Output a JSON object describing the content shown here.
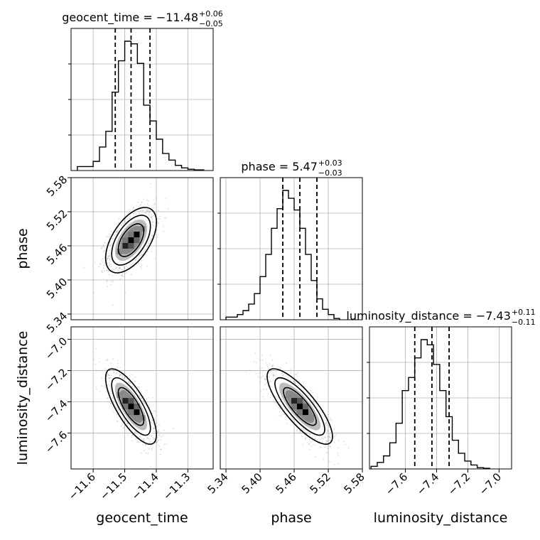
{
  "chart_data": {
    "type": "corner",
    "parameters": [
      {
        "name": "geocent_time",
        "axis_label": "geocent_time",
        "title": {
          "prefix": "geocent_time = ",
          "median": "−11.48",
          "plus": "+0.06",
          "minus": "−0.05"
        },
        "quantiles": [
          -11.53,
          -11.48,
          -11.42
        ],
        "range": [
          -11.67,
          -11.22
        ],
        "ticks": [
          -11.6,
          -11.5,
          -11.4,
          -11.3
        ],
        "tick_labels": [
          "−11.6",
          "−11.5",
          "−11.4",
          "−11.3"
        ],
        "hist_edges": [
          -11.65,
          -11.6,
          -11.58,
          -11.56,
          -11.54,
          -11.52,
          -11.5,
          -11.48,
          -11.46,
          -11.44,
          -11.42,
          -11.4,
          -11.38,
          -11.36,
          -11.34,
          -11.32,
          -11.3,
          -11.28,
          -11.25
        ],
        "hist_counts": [
          0.03,
          0.07,
          0.18,
          0.3,
          0.6,
          0.84,
          0.99,
          0.97,
          0.82,
          0.5,
          0.38,
          0.24,
          0.13,
          0.08,
          0.04,
          0.02,
          0.01,
          0.005
        ]
      },
      {
        "name": "phase",
        "axis_label": "phase",
        "title": {
          "prefix": "phase = ",
          "median": "5.47",
          "plus": "+0.03",
          "minus": "−0.03"
        },
        "quantiles": [
          5.44,
          5.47,
          5.5
        ],
        "range": [
          5.33,
          5.58
        ],
        "ticks": [
          5.34,
          5.4,
          5.46,
          5.52,
          5.58
        ],
        "tick_labels": [
          "5.34",
          "5.40",
          "5.46",
          "5.52",
          "5.58"
        ],
        "hist_edges": [
          5.34,
          5.36,
          5.37,
          5.38,
          5.39,
          5.4,
          5.41,
          5.42,
          5.43,
          5.44,
          5.45,
          5.46,
          5.47,
          5.48,
          5.49,
          5.5,
          5.51,
          5.52,
          5.53,
          5.54
        ],
        "hist_counts": [
          0.02,
          0.04,
          0.07,
          0.12,
          0.2,
          0.33,
          0.5,
          0.7,
          0.85,
          0.99,
          0.93,
          0.84,
          0.7,
          0.5,
          0.3,
          0.16,
          0.08,
          0.04,
          0.01
        ]
      },
      {
        "name": "luminosity_distance",
        "axis_label": "luminosity_distance",
        "title": {
          "prefix": "luminosity_distance = ",
          "median": "−7.43",
          "plus": "+0.11",
          "minus": "−0.11"
        },
        "quantiles": [
          -7.54,
          -7.43,
          -7.32
        ],
        "range": [
          -7.83,
          -6.92
        ],
        "ticks": [
          -7.6,
          -7.4,
          -7.2,
          -7.0
        ],
        "tick_labels": [
          "−7.6",
          "−7.4",
          "−7.2",
          "−7.0"
        ],
        "hist_edges": [
          -7.82,
          -7.78,
          -7.74,
          -7.7,
          -7.66,
          -7.62,
          -7.58,
          -7.54,
          -7.5,
          -7.46,
          -7.42,
          -7.38,
          -7.34,
          -7.3,
          -7.26,
          -7.22,
          -7.18,
          -7.14,
          -7.1,
          -7.06
        ],
        "hist_counts": [
          0.02,
          0.05,
          0.1,
          0.2,
          0.35,
          0.6,
          0.7,
          0.85,
          0.99,
          0.95,
          0.8,
          0.6,
          0.4,
          0.22,
          0.12,
          0.06,
          0.03,
          0.01,
          0.005
        ]
      }
    ],
    "correlations": {
      "phase|geocent_time": 0.55,
      "luminosity_distance|geocent_time": -0.75,
      "luminosity_distance|phase": -0.8
    },
    "grid": true,
    "xlabels_row": [
      "geocent_time",
      "phase",
      "luminosity_distance"
    ],
    "ylabels_col": [
      "",
      "phase",
      "luminosity_distance"
    ]
  }
}
